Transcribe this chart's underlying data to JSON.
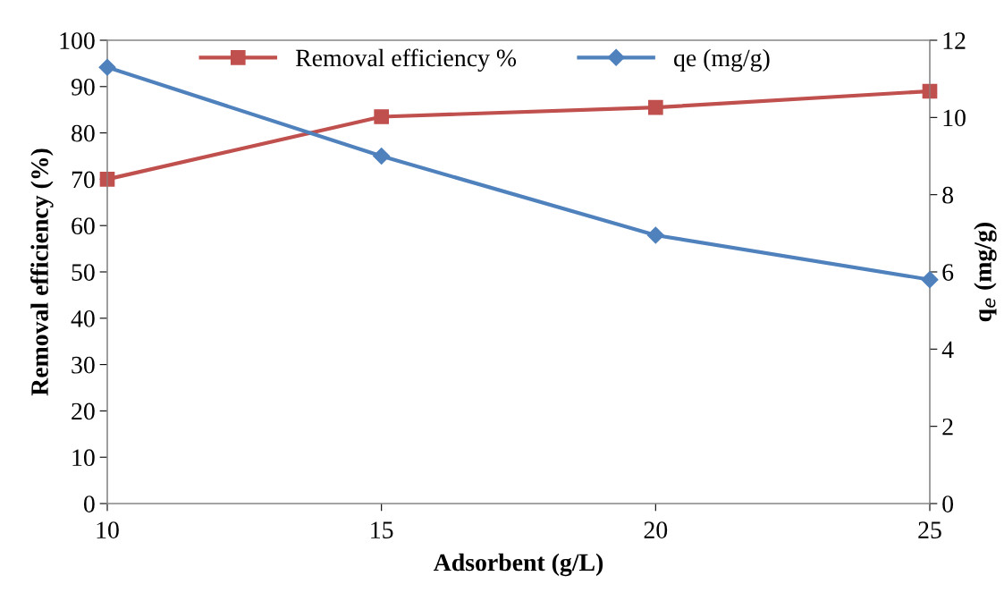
{
  "chart_data": {
    "type": "line",
    "xlabel": "Adsorbent (g/L)",
    "ylabel": "Removal efficiency (%)",
    "y2label": "q$_{e}$ (mg/g)",
    "x": [
      10,
      15,
      20,
      25
    ],
    "xlim": [
      10,
      25
    ],
    "xticks": [
      10,
      15,
      20,
      25
    ],
    "ylim": [
      0,
      100
    ],
    "yticks": [
      0,
      10,
      20,
      30,
      40,
      50,
      60,
      70,
      80,
      90,
      100
    ],
    "y2lim": [
      0,
      12
    ],
    "y2ticks": [
      0,
      2,
      4,
      6,
      8,
      10,
      12
    ],
    "series": [
      {
        "name": "Removal efficiency %",
        "color": "#c0504d",
        "values": [
          70,
          83.5,
          85.5,
          89
        ],
        "marker": "square"
      },
      {
        "name": "qe (mg/g)",
        "color": "#4f81bd",
        "values": [
          11.3,
          9.0,
          6.95,
          5.8
        ],
        "marker": "diamond",
        "axis": "y2"
      }
    ],
    "legend": "top",
    "grid": false,
    "line_style": "solid"
  }
}
